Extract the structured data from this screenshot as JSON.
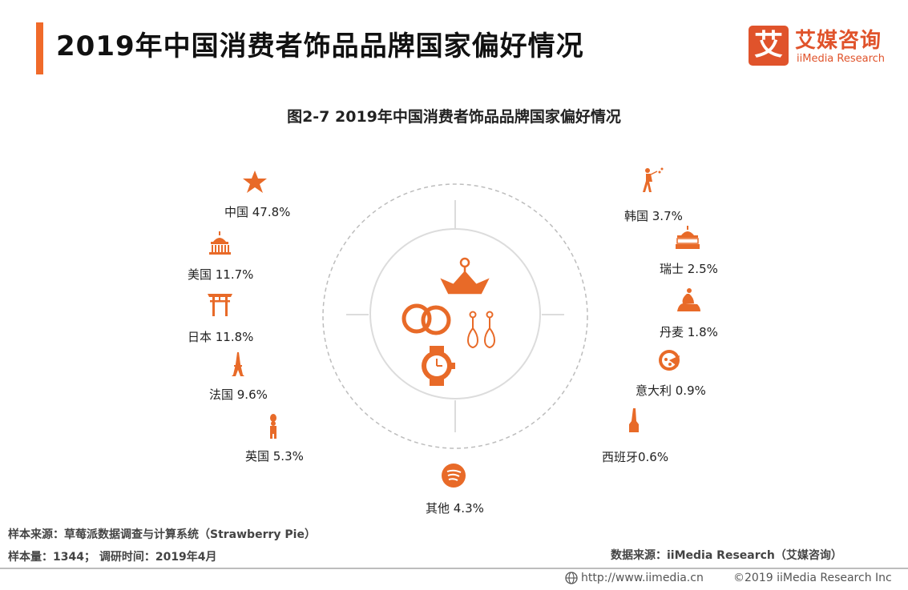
{
  "header": {
    "title": "2019年中国消费者饰品品牌国家偏好情况",
    "logo_mark": "艾",
    "logo_cn": "艾媒咨询",
    "logo_en": "iiMedia Research",
    "accent_color": "#f06a2a",
    "brand_color": "#e0532b"
  },
  "chart_data": {
    "type": "pie",
    "title": "图2-7 2019年中国消费者饰品品牌国家偏好情况",
    "unit": "%",
    "series": [
      {
        "name": "中国",
        "value": 47.8,
        "label": "中国 47.8%",
        "icon": "star-icon"
      },
      {
        "name": "美国",
        "value": 11.7,
        "label": "美国 11.7%",
        "icon": "capitol-icon"
      },
      {
        "name": "日本",
        "value": 11.8,
        "label": "日本 11.8%",
        "icon": "torii-gate-icon"
      },
      {
        "name": "法国",
        "value": 9.6,
        "label": "法国 9.6%",
        "icon": "eiffel-tower-icon"
      },
      {
        "name": "英国",
        "value": 5.3,
        "label": "英国 5.3%",
        "icon": "royal-guard-icon"
      },
      {
        "name": "其他",
        "value": 4.3,
        "label": "其他 4.3%",
        "icon": "other-icon"
      },
      {
        "name": "西班牙",
        "value": 0.6,
        "label": "西班牙0.6%",
        "icon": "sagrada-familia-icon"
      },
      {
        "name": "意大利",
        "value": 0.9,
        "label": "意大利 0.9%",
        "icon": "pizza-icon"
      },
      {
        "name": "丹麦",
        "value": 1.8,
        "label": "丹麦 1.8%",
        "icon": "little-mermaid-icon"
      },
      {
        "name": "瑞士",
        "value": 2.5,
        "label": "瑞士 2.5%",
        "icon": "swiss-building-icon"
      },
      {
        "name": "韩国",
        "value": 3.7,
        "label": "韩国 3.7%",
        "icon": "dancer-icon"
      }
    ],
    "center_icons": [
      "crown-icon",
      "rings-icon",
      "earrings-icon",
      "watch-icon"
    ],
    "icon_color": "#e86a28"
  },
  "footer": {
    "source_left": "样本来源：草莓派数据调查与计算系统（Strawberry Pie）",
    "sample": "样本量：1344； 调研时间：2019年4月",
    "source_right": "数据来源：iiMedia Research（艾媒咨询）",
    "url": "http://www.iimedia.cn",
    "copyright": "©2019  iiMedia Research  Inc"
  }
}
